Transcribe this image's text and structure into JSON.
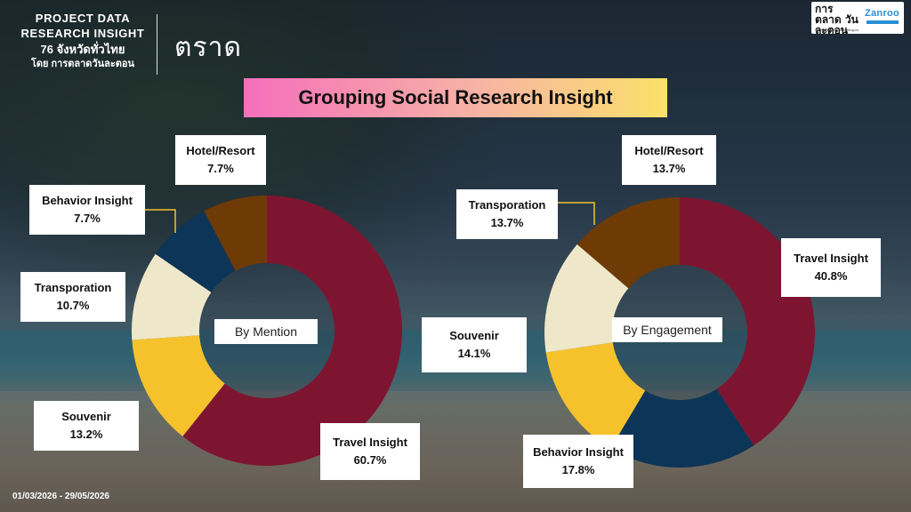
{
  "brand": {
    "line1": "PROJECT DATA",
    "line2": "RESEARCH INSIGHT",
    "line3": "76 จังหวัดทั่วไทย",
    "line4": "โดย การตลาดวันละตอน"
  },
  "province": "ตราด",
  "logos": {
    "left_text": "การตลาด วันละตอน",
    "left_sub": "www.EverydayMarketing.co",
    "right_text": "Zanroo"
  },
  "title": "Grouping Social Research Insight",
  "date_range": "01/03/2026 - 29/05/2026",
  "colors": {
    "Travel Insight": "#7e1530",
    "Souvenir": "#f6c22b",
    "Transporation": "#efe7c9",
    "Behavior Insight": "#0d3557",
    "Hotel/Resort": "#6e3a06"
  },
  "chart_data": [
    {
      "type": "pie",
      "donut": true,
      "title": "By Mention",
      "categories": [
        "Travel Insight",
        "Souvenir",
        "Transporation",
        "Behavior Insight",
        "Hotel/Resort"
      ],
      "values": [
        60.7,
        13.2,
        10.7,
        7.7,
        7.7
      ],
      "value_labels": [
        "60.7%",
        "13.2%",
        "10.7%",
        "7.7%",
        "7.7%"
      ]
    },
    {
      "type": "pie",
      "donut": true,
      "title": "By Engagement",
      "categories": [
        "Travel Insight",
        "Behavior Insight",
        "Souvenir",
        "Transporation",
        "Hotel/Resort"
      ],
      "values": [
        40.8,
        17.8,
        14.1,
        13.7,
        13.7
      ],
      "value_labels": [
        "40.8%",
        "17.8%",
        "14.1%",
        "13.7%",
        "13.7%"
      ]
    }
  ]
}
